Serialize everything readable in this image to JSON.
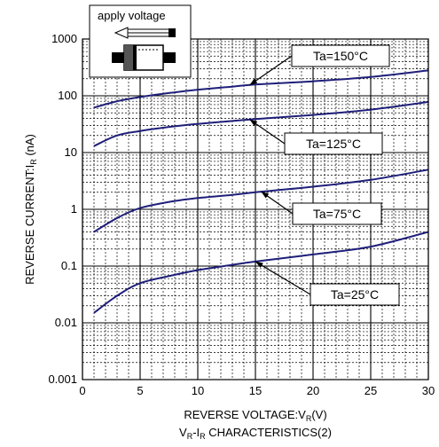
{
  "chart_data": {
    "type": "line",
    "title": "",
    "caption": {
      "main": "V",
      "sub1": "R",
      "mid": "-I",
      "sub2": "R",
      "tail": " CHARACTERISTICS(2)"
    },
    "xlabel": "REVERSE VOLTAGE:V",
    "xlabel_sub": "R",
    "xlabel_tail": "(V)",
    "ylabel": "REVERSE CURRENT:I",
    "ylabel_sub": "R",
    "ylabel_tail": " (nA)",
    "xlim": [
      0,
      30
    ],
    "ylim": [
      0.001,
      1000
    ],
    "yscale": "log",
    "grid": true,
    "x_ticks": [
      {
        "value": 0,
        "label": "0"
      },
      {
        "value": 5,
        "label": "5"
      },
      {
        "value": 10,
        "label": "10"
      },
      {
        "value": 15,
        "label": "15"
      },
      {
        "value": 20,
        "label": "20"
      },
      {
        "value": 25,
        "label": "25"
      },
      {
        "value": 30,
        "label": "30"
      }
    ],
    "y_ticks": [
      {
        "value": 0.001,
        "label": "0.001"
      },
      {
        "value": 0.01,
        "label": "0.01"
      },
      {
        "value": 0.1,
        "label": "0.1"
      },
      {
        "value": 1,
        "label": "1"
      },
      {
        "value": 10,
        "label": "10"
      },
      {
        "value": 100,
        "label": "100"
      },
      {
        "value": 1000,
        "label": "1000"
      }
    ],
    "line_color": "#1f1f7a",
    "series": [
      {
        "name": "Ta=150°C",
        "x": [
          1,
          3,
          5,
          8,
          10,
          13,
          15,
          20,
          25,
          30
        ],
        "y": [
          62,
          80,
          95,
          115,
          128,
          145,
          158,
          180,
          215,
          280
        ]
      },
      {
        "name": "Ta=125°C",
        "x": [
          1,
          3,
          5,
          8,
          10,
          13,
          15,
          20,
          25,
          30
        ],
        "y": [
          13,
          20,
          24,
          29,
          32,
          36,
          39,
          46,
          57,
          78
        ]
      },
      {
        "name": "Ta=75°C",
        "x": [
          1,
          3,
          5,
          8,
          10,
          13,
          15,
          20,
          25,
          30
        ],
        "y": [
          0.4,
          0.7,
          1.05,
          1.4,
          1.58,
          1.8,
          2.0,
          2.5,
          3.3,
          5.0
        ]
      },
      {
        "name": "Ta=25°C",
        "x": [
          1,
          3,
          5,
          8,
          10,
          13,
          15,
          20,
          25,
          30
        ],
        "y": [
          0.015,
          0.03,
          0.05,
          0.07,
          0.085,
          0.105,
          0.12,
          0.16,
          0.22,
          0.4
        ]
      }
    ],
    "annotations": [
      {
        "text": "Ta=150°C",
        "series": 0,
        "point_x": 14.5
      },
      {
        "text": "Ta=125°C",
        "series": 1,
        "point_x": 14.5
      },
      {
        "text": "Ta=75°C",
        "series": 2,
        "point_x": 15.5
      },
      {
        "text": "Ta=25°C",
        "series": 3,
        "point_x": 15.0
      }
    ],
    "inset": {
      "label": "apply voltage",
      "icon": "diode-with-arrow-icon"
    }
  }
}
